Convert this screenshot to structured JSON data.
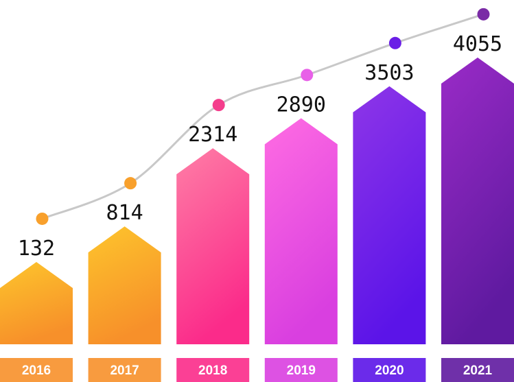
{
  "chart_data": {
    "type": "bar",
    "title": "",
    "xlabel": "",
    "ylabel": "",
    "categories": [
      "2016",
      "2017",
      "2018",
      "2019",
      "2020",
      "2021"
    ],
    "values": [
      132,
      814,
      2314,
      2890,
      3503,
      4055
    ],
    "value_labels": [
      "132",
      "814",
      "2314",
      "2890",
      "3503",
      "4055"
    ],
    "trend_line": true,
    "grid": false,
    "legend": "none",
    "colors": {
      "2016": {
        "top": "#FDC52C",
        "bottom": "#F7902A",
        "dot": "#F8A02C"
      },
      "2017": {
        "top": "#FDC52C",
        "bottom": "#F7902A",
        "dot": "#F8A02C"
      },
      "2018": {
        "top": "#FE7EA6",
        "bottom": "#FB2B8A",
        "dot": "#F43E8C"
      },
      "2019": {
        "top": "#FF6CE2",
        "bottom": "#D93FE0",
        "dot": "#E860E8"
      },
      "2020": {
        "top": "#8E36E8",
        "bottom": "#5B14E8",
        "dot": "#6A1EE6"
      },
      "2021": {
        "top": "#9A2BC7",
        "bottom": "#5F1AA0",
        "dot": "#7A2BA6"
      },
      "trend_line": "#C8C8C8"
    }
  }
}
